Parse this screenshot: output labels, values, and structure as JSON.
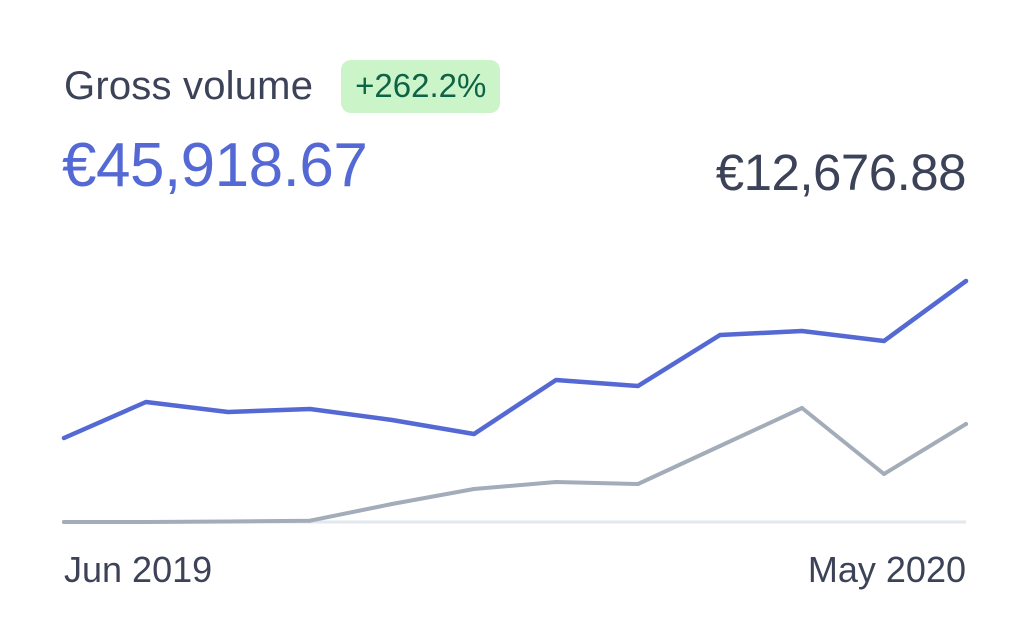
{
  "header": {
    "title": "Gross volume",
    "change": "+262.2%"
  },
  "values": {
    "current": "€45,918.67",
    "previous": "€12,676.88"
  },
  "colors": {
    "current_series": "#5469d4",
    "previous_series": "#a3acb9",
    "baseline": "#e3e8ee",
    "badge_bg": "#cbf4c9",
    "badge_text": "#0e6245"
  },
  "chart_data": {
    "type": "line",
    "x_labels": [
      "Jun 2019",
      "May 2020"
    ],
    "ylim": [
      0,
      26000
    ],
    "series": [
      {
        "key": "current",
        "values": [
          8400,
          12000,
          11000,
          11300,
          10200,
          8800,
          14200,
          13600,
          18700,
          19100,
          18100,
          24100
        ]
      },
      {
        "key": "previous",
        "values": [
          0,
          0,
          50,
          130,
          1800,
          3300,
          4000,
          3800,
          7600,
          11400,
          4800,
          9800
        ]
      }
    ]
  }
}
